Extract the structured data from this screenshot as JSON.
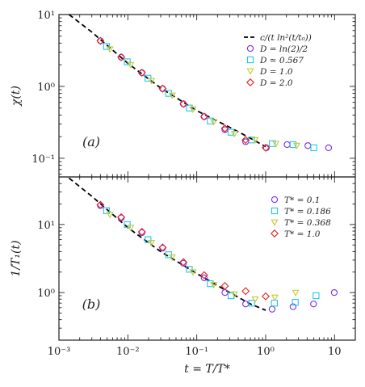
{
  "chart_data": [
    {
      "type": "scatter",
      "panel_label": "(a)",
      "ylabel": "χ(t)",
      "xlabel": "",
      "x_scale": "log",
      "y_scale": "log",
      "xlim": [
        0.001,
        20
      ],
      "ylim": [
        0.055,
        10
      ],
      "y_ticks": [
        {
          "value": 0.1,
          "label": "10⁻¹"
        },
        {
          "value": 1,
          "label": "10⁰"
        },
        {
          "value": 10,
          "label": "10¹"
        }
      ],
      "legend_position": "top-right",
      "fit": {
        "name": "c/(t ln²(t/t₀))",
        "points": [
          [
            0.0014,
            10.0
          ],
          [
            0.003,
            5.7
          ],
          [
            0.01,
            2.1
          ],
          [
            0.03,
            0.95
          ],
          [
            0.1,
            0.46
          ],
          [
            0.3,
            0.27
          ],
          [
            0.6,
            0.19
          ],
          [
            1.0,
            0.145
          ]
        ]
      },
      "series": [
        {
          "name": "D = ln(2)/2",
          "marker": "circle",
          "color": "#7b2cf0",
          "x": [
            0.004,
            0.008,
            0.016,
            0.032,
            0.064,
            0.128,
            0.256,
            0.512,
            1.024,
            2.048,
            4.096,
            8.192
          ],
          "y": [
            4.3,
            2.55,
            1.55,
            0.93,
            0.57,
            0.38,
            0.25,
            0.17,
            0.14,
            0.155,
            0.15,
            0.14
          ]
        },
        {
          "name": "D ≃ 0.567",
          "marker": "square",
          "color": "#22c8e6",
          "x": [
            0.0049,
            0.0098,
            0.0196,
            0.039,
            0.078,
            0.157,
            0.314,
            0.627,
            1.25,
            2.5,
            5.0
          ],
          "y": [
            3.6,
            2.2,
            1.3,
            0.8,
            0.5,
            0.33,
            0.23,
            0.18,
            0.16,
            0.155,
            0.14
          ]
        },
        {
          "name": "D = 1.0",
          "marker": "triangle-down",
          "color": "#c8c832",
          "x": [
            0.0055,
            0.011,
            0.022,
            0.044,
            0.088,
            0.176,
            0.352,
            0.704,
            1.41,
            2.82
          ],
          "y": [
            3.3,
            2.0,
            1.2,
            0.75,
            0.48,
            0.32,
            0.22,
            0.18,
            0.16,
            0.15
          ]
        },
        {
          "name": "D = 2.0",
          "marker": "diamond",
          "color": "#e8201e",
          "x": [
            0.004,
            0.008,
            0.016,
            0.032,
            0.064,
            0.128,
            0.256,
            0.512,
            1.0
          ],
          "y": [
            4.3,
            2.55,
            1.55,
            0.93,
            0.57,
            0.38,
            0.26,
            0.18,
            0.14
          ]
        }
      ]
    },
    {
      "type": "scatter",
      "panel_label": "(b)",
      "ylabel": "1/T₁(t)",
      "xlabel": "t = T/T*",
      "x_scale": "log",
      "y_scale": "log",
      "xlim": [
        0.001,
        20
      ],
      "ylim": [
        0.2,
        50
      ],
      "x_ticks": [
        {
          "value": 0.001,
          "label": "10⁻³"
        },
        {
          "value": 0.01,
          "label": "10⁻²"
        },
        {
          "value": 0.1,
          "label": "10⁻¹"
        },
        {
          "value": 1,
          "label": "10⁰"
        },
        {
          "value": 10,
          "label": "10"
        }
      ],
      "y_ticks": [
        {
          "value": 1,
          "label": "10⁰"
        },
        {
          "value": 10,
          "label": "10¹"
        }
      ],
      "legend_position": "top-right",
      "fit": {
        "name": "",
        "points": [
          [
            0.0014,
            48.0
          ],
          [
            0.003,
            26.0
          ],
          [
            0.01,
            9.0
          ],
          [
            0.03,
            4.0
          ],
          [
            0.1,
            1.9
          ],
          [
            0.3,
            1.0
          ],
          [
            0.6,
            0.68
          ],
          [
            1.0,
            0.55
          ]
        ]
      },
      "series": [
        {
          "name": "T* = 0.1",
          "marker": "circle",
          "color": "#7b2cf0",
          "x": [
            0.004,
            0.008,
            0.016,
            0.032,
            0.064,
            0.128,
            0.256,
            0.512,
            1.24,
            2.5,
            4.95,
            9.9
          ],
          "y": [
            19.0,
            12.5,
            7.6,
            4.5,
            2.7,
            1.65,
            1.0,
            0.68,
            0.57,
            0.62,
            0.68,
            1.0
          ]
        },
        {
          "name": "T* = 0.186",
          "marker": "square",
          "color": "#22c8e6",
          "x": [
            0.0049,
            0.0098,
            0.0196,
            0.039,
            0.078,
            0.157,
            0.314,
            0.627,
            1.34,
            2.69,
            5.38
          ],
          "y": [
            16.0,
            10.0,
            6.0,
            3.6,
            2.2,
            1.35,
            0.9,
            0.7,
            0.7,
            0.72,
            0.9
          ]
        },
        {
          "name": "T* = 0.368",
          "marker": "triangle-down",
          "color": "#c8c832",
          "x": [
            0.0055,
            0.011,
            0.022,
            0.044,
            0.088,
            0.176,
            0.352,
            0.704,
            1.36,
            2.72
          ],
          "y": [
            14.0,
            9.0,
            5.4,
            3.3,
            2.0,
            1.3,
            0.95,
            0.8,
            0.85,
            1.0
          ]
        },
        {
          "name": "T* = 1.0",
          "marker": "diamond",
          "color": "#e8201e",
          "x": [
            0.004,
            0.008,
            0.016,
            0.032,
            0.064,
            0.128,
            0.256,
            0.512,
            1.0
          ],
          "y": [
            19.5,
            12.8,
            7.8,
            4.6,
            2.8,
            1.8,
            1.25,
            1.05,
            0.88
          ]
        }
      ]
    }
  ]
}
